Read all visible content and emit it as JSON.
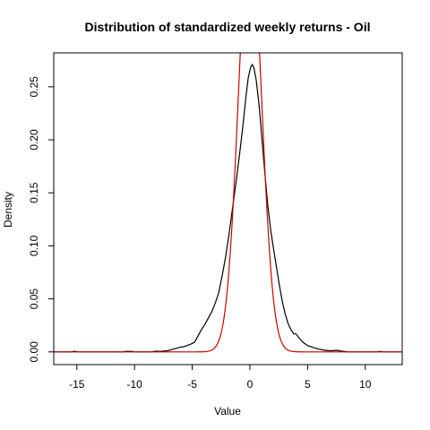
{
  "chart_data": {
    "type": "line",
    "title": "Distribution of standardized weekly returns - Oil",
    "xlabel": "Value",
    "ylabel": "Density",
    "xlim": [
      -17,
      13.2
    ],
    "ylim": [
      -0.012,
      0.282
    ],
    "x_ticks": [
      -15,
      -10,
      -5,
      0,
      5,
      10
    ],
    "x_tick_labels": [
      "-15",
      "-10",
      "-5",
      "0",
      "5",
      "10"
    ],
    "y_ticks": [
      0.0,
      0.05,
      0.1,
      0.15,
      0.2,
      0.25
    ],
    "y_tick_labels": [
      "0.00",
      "0.05",
      "0.10",
      "0.15",
      "0.20",
      "0.25"
    ],
    "grid": false,
    "legend": "none",
    "series": [
      {
        "color": "#000000",
        "points": [
          [
            -17,
            0
          ],
          [
            -15.5,
            0
          ],
          [
            -15.2,
            0.0006
          ],
          [
            -14.9,
            0
          ],
          [
            -11,
            0
          ],
          [
            -10.8,
            0.0005
          ],
          [
            -10.2,
            0.0005
          ],
          [
            -10,
            0
          ],
          [
            -8.5,
            0
          ],
          [
            -8.2,
            0.0007
          ],
          [
            -7.8,
            0.0005
          ],
          [
            -7.2,
            0.001
          ],
          [
            -6.8,
            0.002
          ],
          [
            -6.2,
            0.004
          ],
          [
            -5.7,
            0.005
          ],
          [
            -5.2,
            0.007
          ],
          [
            -4.8,
            0.009
          ],
          [
            -4.5,
            0.015
          ],
          [
            -4.2,
            0.021
          ],
          [
            -3.9,
            0.026
          ],
          [
            -3.6,
            0.032
          ],
          [
            -3.3,
            0.038
          ],
          [
            -3.0,
            0.046
          ],
          [
            -2.7,
            0.056
          ],
          [
            -2.4,
            0.072
          ],
          [
            -2.1,
            0.09
          ],
          [
            -1.8,
            0.112
          ],
          [
            -1.5,
            0.136
          ],
          [
            -1.2,
            0.16
          ],
          [
            -0.9,
            0.186
          ],
          [
            -0.6,
            0.214
          ],
          [
            -0.35,
            0.24
          ],
          [
            -0.15,
            0.258
          ],
          [
            0.05,
            0.268
          ],
          [
            0.2,
            0.271
          ],
          [
            0.35,
            0.268
          ],
          [
            0.55,
            0.256
          ],
          [
            0.8,
            0.232
          ],
          [
            1.05,
            0.2
          ],
          [
            1.3,
            0.168
          ],
          [
            1.55,
            0.138
          ],
          [
            1.8,
            0.115
          ],
          [
            2.05,
            0.097
          ],
          [
            2.3,
            0.08
          ],
          [
            2.55,
            0.063
          ],
          [
            2.8,
            0.048
          ],
          [
            3.05,
            0.036
          ],
          [
            3.3,
            0.027
          ],
          [
            3.55,
            0.021
          ],
          [
            3.8,
            0.017
          ],
          [
            4.0,
            0.017
          ],
          [
            4.2,
            0.014
          ],
          [
            4.6,
            0.009
          ],
          [
            5.0,
            0.006
          ],
          [
            5.5,
            0.004
          ],
          [
            6.0,
            0.0025
          ],
          [
            6.5,
            0.0015
          ],
          [
            7.0,
            0.001
          ],
          [
            7.5,
            0.0015
          ],
          [
            7.9,
            0.0008
          ],
          [
            8.5,
            0
          ],
          [
            11.0,
            0
          ],
          [
            11.3,
            0.0005
          ],
          [
            11.6,
            0
          ],
          [
            13.2,
            0
          ]
        ]
      },
      {
        "color": "#cc0000",
        "distribution": "normal",
        "mean": 0,
        "sd": 1
      }
    ]
  }
}
